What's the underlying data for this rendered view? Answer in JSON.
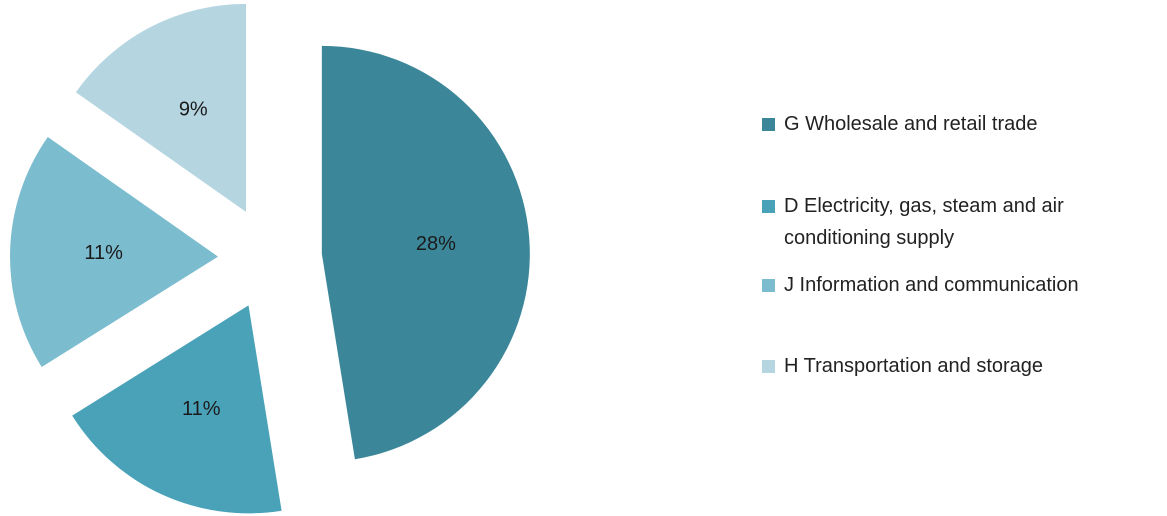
{
  "chart_data": {
    "type": "pie",
    "title": "",
    "slices": [
      {
        "name": "G Wholesale and retail trade",
        "value": 28,
        "label": "28%",
        "color": "#3B8699"
      },
      {
        "name": "D Electricity, gas, steam and air conditioning supply",
        "value": 11,
        "label": "11%",
        "color": "#4AA2B9"
      },
      {
        "name": "J Information and communication",
        "value": 11,
        "label": "11%",
        "color": "#7BBCCF"
      },
      {
        "name": "H Transportation and storage",
        "value": 9,
        "label": "9%",
        "color": "#B5D5E1"
      }
    ],
    "legend_position": "right",
    "exploded": true
  }
}
